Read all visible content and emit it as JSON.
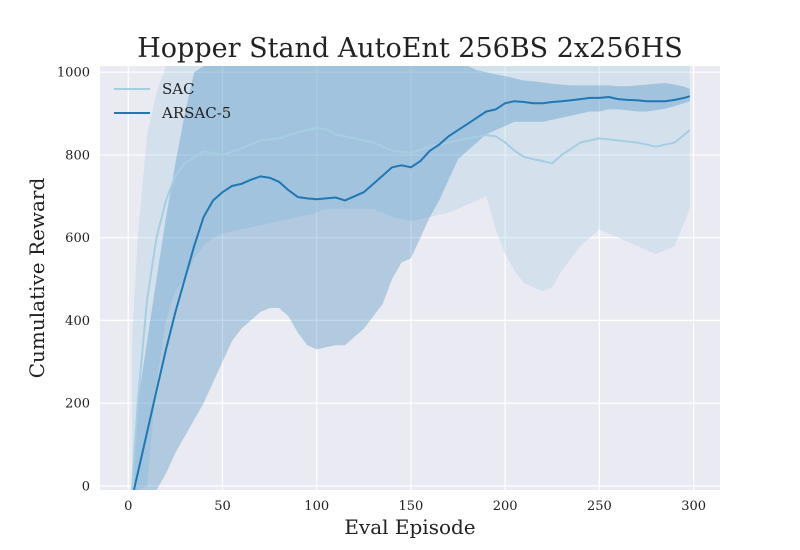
{
  "chart_data": {
    "type": "line",
    "title": "Hopper Stand AutoEnt 256BS 2x256HS",
    "xlabel": "Eval Episode",
    "ylabel": "Cumulative Reward",
    "xlim": [
      -15,
      314
    ],
    "ylim": [
      -10,
      1015
    ],
    "xticks": [
      0,
      50,
      100,
      150,
      200,
      250,
      300
    ],
    "yticks": [
      0,
      200,
      400,
      600,
      800,
      1000
    ],
    "grid": true,
    "legend_position": "top-left",
    "series": [
      {
        "name": "SAC",
        "color": "#a6cee3",
        "x": [
          2,
          5,
          10,
          15,
          20,
          25,
          30,
          35,
          40,
          45,
          50,
          60,
          70,
          80,
          90,
          100,
          105,
          110,
          120,
          130,
          140,
          150,
          160,
          170,
          180,
          190,
          195,
          200,
          205,
          210,
          215,
          220,
          225,
          230,
          240,
          250,
          260,
          270,
          280,
          290,
          298
        ],
        "y": [
          -10,
          200,
          450,
          600,
          690,
          750,
          780,
          795,
          808,
          805,
          800,
          815,
          835,
          840,
          855,
          865,
          862,
          850,
          840,
          830,
          810,
          805,
          820,
          830,
          840,
          848,
          845,
          830,
          810,
          795,
          790,
          785,
          780,
          800,
          830,
          840,
          835,
          830,
          820,
          830,
          860
        ],
        "lower": [
          -10,
          -10,
          0,
          250,
          400,
          470,
          500,
          550,
          580,
          600,
          610,
          620,
          630,
          640,
          650,
          660,
          670,
          670,
          670,
          670,
          650,
          640,
          650,
          660,
          680,
          700,
          620,
          560,
          520,
          490,
          480,
          470,
          480,
          520,
          580,
          620,
          600,
          580,
          560,
          580,
          670
        ],
        "upper": [
          350,
          600,
          850,
          950,
          1015,
          1015,
          1015,
          1015,
          1015,
          1015,
          1015,
          1015,
          1015,
          1015,
          1015,
          1015,
          1015,
          1015,
          1015,
          1015,
          1015,
          1015,
          1015,
          1015,
          1015,
          1015,
          1015,
          1015,
          1015,
          1015,
          1015,
          1015,
          1015,
          1015,
          1015,
          1015,
          1015,
          1015,
          1015,
          1015,
          1015
        ]
      },
      {
        "name": "ARSAC-5",
        "color": "#1f78b4",
        "x": [
          3,
          5,
          10,
          15,
          20,
          25,
          30,
          35,
          40,
          45,
          50,
          55,
          60,
          65,
          70,
          75,
          80,
          85,
          90,
          95,
          100,
          105,
          110,
          115,
          120,
          125,
          130,
          135,
          140,
          145,
          150,
          155,
          160,
          165,
          170,
          175,
          180,
          185,
          190,
          195,
          200,
          205,
          210,
          215,
          220,
          225,
          230,
          235,
          240,
          245,
          250,
          255,
          260,
          265,
          270,
          275,
          280,
          285,
          290,
          295,
          298
        ],
        "y": [
          -10,
          30,
          130,
          230,
          330,
          420,
          500,
          580,
          650,
          690,
          710,
          725,
          730,
          740,
          748,
          745,
          735,
          715,
          698,
          695,
          693,
          695,
          697,
          690,
          700,
          710,
          730,
          750,
          770,
          775,
          770,
          785,
          810,
          825,
          845,
          860,
          875,
          890,
          905,
          910,
          925,
          930,
          928,
          925,
          925,
          928,
          930,
          932,
          935,
          938,
          938,
          940,
          935,
          933,
          932,
          930,
          930,
          930,
          933,
          938,
          942
        ],
        "lower": [
          -10,
          -10,
          -10,
          -10,
          30,
          80,
          120,
          160,
          200,
          250,
          300,
          350,
          380,
          400,
          420,
          430,
          430,
          410,
          370,
          340,
          330,
          335,
          340,
          340,
          360,
          380,
          410,
          440,
          500,
          540,
          550,
          600,
          650,
          690,
          740,
          790,
          810,
          830,
          850,
          860,
          870,
          880,
          880,
          880,
          880,
          885,
          890,
          895,
          900,
          905,
          905,
          910,
          910,
          908,
          905,
          905,
          908,
          912,
          918,
          925,
          930
        ],
        "upper": [
          100,
          200,
          350,
          500,
          650,
          780,
          900,
          1000,
          1015,
          1015,
          1015,
          1015,
          1015,
          1015,
          1015,
          1015,
          1015,
          1015,
          1015,
          1015,
          1015,
          1015,
          1015,
          1015,
          1015,
          1015,
          1015,
          1015,
          1015,
          1015,
          1015,
          1015,
          1015,
          1015,
          1015,
          1015,
          1015,
          1005,
          1000,
          995,
          990,
          985,
          980,
          978,
          975,
          972,
          970,
          968,
          968,
          968,
          968,
          968,
          966,
          966,
          968,
          970,
          972,
          974,
          970,
          965,
          960
        ]
      }
    ]
  }
}
